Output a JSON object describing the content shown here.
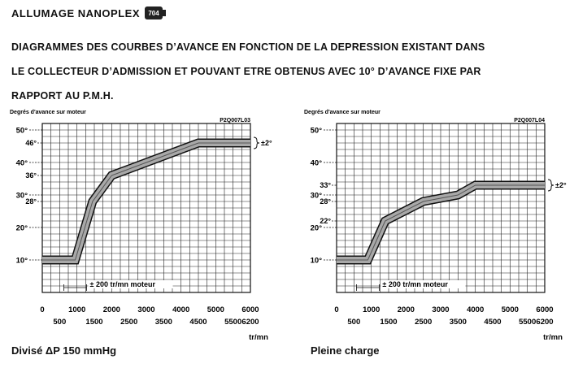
{
  "header": {
    "title": "ALLUMAGE NANOPLEX",
    "logo_text": "704",
    "heading_lines": [
      "DIAGRAMMES DES COURBES D’AVANCE EN FONCTION DE LA DEPRESSION EXISTANT DANS",
      "LE COLLECTEUR D’ADMISSION ET POUVANT ETRE OBTENUS AVEC 10° D’AVANCE FIXE PAR",
      "RAPPORT AU P.M.H."
    ]
  },
  "chart_data": [
    {
      "type": "line",
      "code": "P2Q007L03",
      "ylabel": "Degrés d'avance sur moteur",
      "xlabel": "tr/mn",
      "caption": "Divisé ΔP  150 mmHg",
      "xlim": [
        0,
        6000
      ],
      "ylim": [
        0,
        52
      ],
      "x_ticks_top": [
        "0",
        "1000",
        "2000",
        "3000",
        "4000",
        "5000",
        "6000"
      ],
      "x_ticks_bottom": [
        "500",
        "1500",
        "2500",
        "3500",
        "4500",
        "5500",
        "6200"
      ],
      "y_ticks": [
        "10°",
        "20°",
        "30°",
        "40°",
        "50°"
      ],
      "y_minor_labels": [
        {
          "label": "28°",
          "value": 28
        },
        {
          "label": "36°",
          "value": 36
        },
        {
          "label": "46°",
          "value": 46
        }
      ],
      "tolerance_label": "±2°",
      "rpm_tolerance_label": "±  200 tr/mn moteur",
      "series": [
        {
          "x": [
            0,
            950,
            1450,
            2000,
            2500,
            4500,
            6200
          ],
          "y": [
            10,
            10,
            28,
            36,
            38,
            46,
            46
          ]
        }
      ]
    },
    {
      "type": "line",
      "code": "P2Q007L04",
      "ylabel": "Degrés d'avance sur moteur",
      "xlabel": "tr/mn",
      "caption": "Pleine charge",
      "xlim": [
        0,
        6000
      ],
      "ylim": [
        0,
        52
      ],
      "x_ticks_top": [
        "0",
        "1000",
        "2000",
        "3000",
        "4000",
        "5000",
        "6000"
      ],
      "x_ticks_bottom": [
        "500",
        "1500",
        "2500",
        "3500",
        "4500",
        "5500",
        "6200"
      ],
      "y_ticks": [
        "10°",
        "20°",
        "30°",
        "40°",
        "50°"
      ],
      "y_minor_labels": [
        {
          "label": "22°",
          "value": 22
        },
        {
          "label": "28°",
          "value": 28
        },
        {
          "label": "33°",
          "value": 33
        }
      ],
      "tolerance_label": "±2°",
      "rpm_tolerance_label": "±  200 tr/mn moteur",
      "series": [
        {
          "x": [
            0,
            900,
            1400,
            2500,
            3500,
            4000,
            6200
          ],
          "y": [
            10,
            10,
            22,
            28,
            30,
            33,
            33
          ]
        }
      ]
    }
  ]
}
